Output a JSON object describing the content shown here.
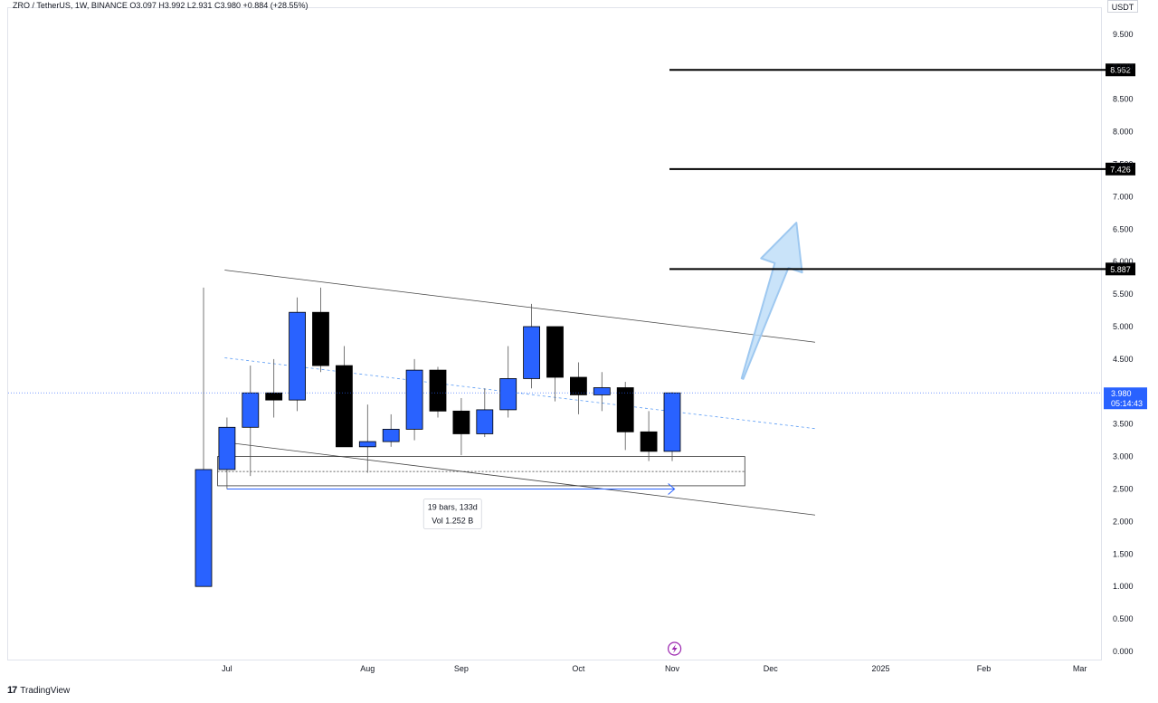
{
  "header": {
    "legend": "ZRO / TetherUS, 1W, BINANCE  O3.097  H3.992  L2.931  C3.980  +0.884 (+28.55%)",
    "currency": "USDT"
  },
  "footer": {
    "brand": "TradingView",
    "logo_glyph": "17"
  },
  "chart_data": {
    "type": "candlestick",
    "symbol": "ZRO / TetherUS",
    "interval": "1W",
    "exchange": "BINANCE",
    "ohlc_summary": {
      "open": 3.097,
      "high": 3.992,
      "low": 2.931,
      "close": 3.98,
      "change": 0.884,
      "change_pct": 28.55
    },
    "ylim": [
      0,
      10
    ],
    "y_ticks": [
      "0.000",
      "0.500",
      "1.000",
      "1.500",
      "2.000",
      "2.500",
      "3.000",
      "3.500",
      "4.000",
      "4.500",
      "5.000",
      "5.500",
      "6.000",
      "6.500",
      "7.000",
      "7.500",
      "8.000",
      "8.500",
      "9.000",
      "9.500"
    ],
    "x_ticks": [
      {
        "label": "Jul",
        "bar": 1
      },
      {
        "label": "Aug",
        "bar": 7
      },
      {
        "label": "Sep",
        "bar": 11
      },
      {
        "label": "Oct",
        "bar": 16
      },
      {
        "label": "Nov",
        "bar": 20
      },
      {
        "label": "Dec",
        "bar": 24.2
      },
      {
        "label": "2025",
        "bar": 28.9
      },
      {
        "label": "Feb",
        "bar": 33.3
      },
      {
        "label": "Mar",
        "bar": 37.4
      }
    ],
    "candles": [
      {
        "o": 1.0,
        "h": 5.6,
        "l": 1.0,
        "c": 2.8
      },
      {
        "o": 2.8,
        "h": 3.6,
        "l": 2.5,
        "c": 3.45
      },
      {
        "o": 3.45,
        "h": 4.4,
        "l": 2.7,
        "c": 3.98
      },
      {
        "o": 3.98,
        "h": 4.5,
        "l": 3.6,
        "c": 3.87
      },
      {
        "o": 3.87,
        "h": 5.45,
        "l": 3.7,
        "c": 5.22
      },
      {
        "o": 5.22,
        "h": 5.6,
        "l": 4.3,
        "c": 4.4
      },
      {
        "o": 4.4,
        "h": 4.7,
        "l": 3.15,
        "c": 3.15
      },
      {
        "o": 3.15,
        "h": 3.8,
        "l": 2.75,
        "c": 3.23
      },
      {
        "o": 3.23,
        "h": 3.65,
        "l": 3.15,
        "c": 3.42
      },
      {
        "o": 3.42,
        "h": 4.5,
        "l": 3.25,
        "c": 4.33
      },
      {
        "o": 4.33,
        "h": 4.38,
        "l": 3.6,
        "c": 3.7
      },
      {
        "o": 3.7,
        "h": 3.9,
        "l": 3.02,
        "c": 3.35
      },
      {
        "o": 3.35,
        "h": 4.05,
        "l": 3.3,
        "c": 3.72
      },
      {
        "o": 3.72,
        "h": 4.7,
        "l": 3.6,
        "c": 4.2
      },
      {
        "o": 4.2,
        "h": 5.35,
        "l": 4.05,
        "c": 5.0
      },
      {
        "o": 5.0,
        "h": 5.0,
        "l": 3.85,
        "c": 4.22
      },
      {
        "o": 4.22,
        "h": 4.45,
        "l": 3.65,
        "c": 3.95
      },
      {
        "o": 3.95,
        "h": 4.3,
        "l": 3.7,
        "c": 4.06
      },
      {
        "o": 4.06,
        "h": 4.15,
        "l": 3.1,
        "c": 3.38
      },
      {
        "o": 3.38,
        "h": 3.7,
        "l": 2.93,
        "c": 3.08
      },
      {
        "o": 3.08,
        "h": 3.99,
        "l": 2.93,
        "c": 3.98
      }
    ],
    "up_color": "#2962ff",
    "down_color": "#000000",
    "price_lines": [
      {
        "price": 8.952,
        "label": "8.952"
      },
      {
        "price": 7.426,
        "label": "7.426"
      },
      {
        "price": 5.887,
        "label": "5.887"
      }
    ],
    "current_price": {
      "price": 3.98,
      "label": "3.980",
      "countdown": "05:14:43",
      "color": "#2962ff"
    },
    "channel": {
      "upper": {
        "bar0": 0.9,
        "p0": 5.87,
        "bar1": 26.1,
        "p1": 4.76
      },
      "lower": {
        "bar0": 0.9,
        "p0": 3.22,
        "bar1": 26.1,
        "p1": 2.1
      },
      "mid": {
        "bar0": 0.9,
        "p0": 4.52,
        "bar1": 26.1,
        "p1": 3.43
      }
    },
    "support_zone": {
      "bar0": 0.6,
      "bar1": 23.1,
      "p_top": 3.0,
      "p_bottom": 2.55,
      "p_dashed": 2.77
    },
    "measure": {
      "bar0": 1.0,
      "bar1": 20.1,
      "price": 2.5,
      "text1": "19 bars, 133d",
      "text2": "Vol 1.252 B"
    },
    "arrow": {
      "color": "#9ec8f0"
    }
  }
}
